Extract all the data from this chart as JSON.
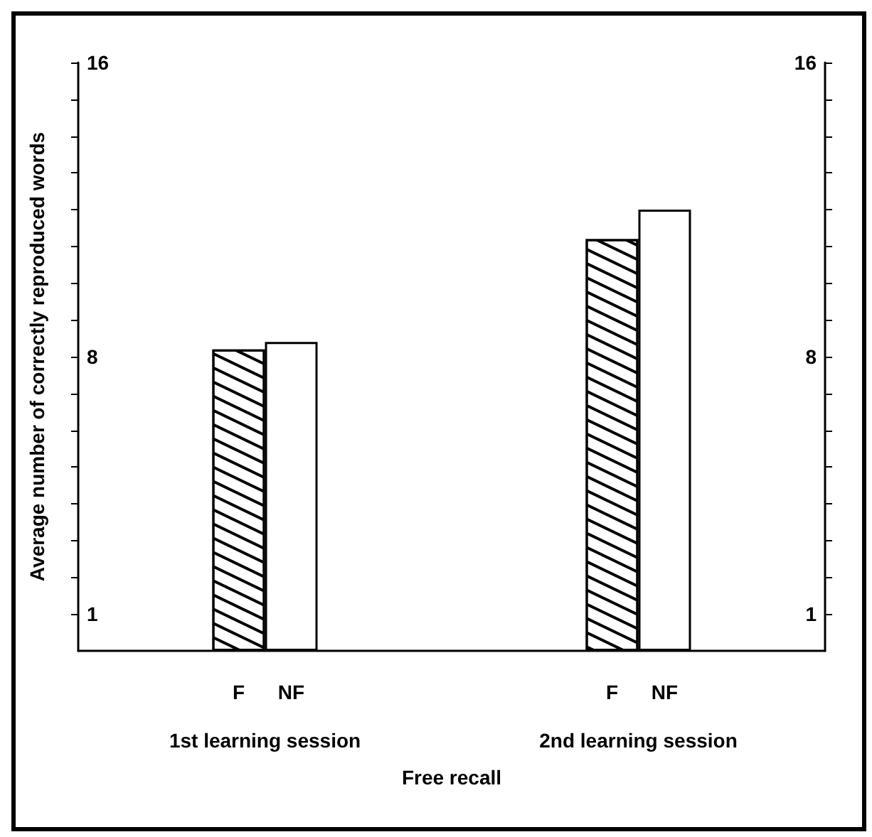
{
  "chart_data": {
    "type": "bar",
    "categories": [
      "1st learning session",
      "2nd learning session"
    ],
    "series": [
      {
        "name": "F",
        "color": "#ffffff",
        "values": [
          8.2,
          11.2
        ]
      },
      {
        "name": "NF",
        "color": "#ffffff",
        "values": [
          8.4,
          12.0
        ]
      }
    ],
    "xlabel": "Free recall",
    "ylabel": "Average number of correctly reproduced words",
    "ylim": [
      0,
      16
    ],
    "yticks": [
      1,
      {
        "value": 2,
        "label": null
      },
      {
        "value": 3,
        "label": null
      },
      {
        "value": 4,
        "label": null
      },
      {
        "value": 5,
        "label": null
      },
      {
        "value": 6,
        "label": null
      },
      {
        "value": 7,
        "label": null
      },
      8,
      {
        "value": 9,
        "label": null
      },
      {
        "value": 10,
        "label": null
      },
      {
        "value": 11,
        "label": null
      },
      {
        "value": 12,
        "label": null
      },
      {
        "value": 13,
        "label": null
      },
      {
        "value": 14,
        "label": null
      },
      {
        "value": 15,
        "label": null
      },
      16
    ],
    "y2lim": [
      0,
      16
    ],
    "y2ticks": [
      1,
      {
        "value": 2,
        "label": null
      },
      {
        "value": 3,
        "label": null
      },
      {
        "value": 4,
        "label": null
      },
      {
        "value": 5,
        "label": null
      },
      {
        "value": 6,
        "label": null
      },
      {
        "value": 7,
        "label": null
      },
      8,
      {
        "value": 9,
        "label": null
      },
      {
        "value": 10,
        "label": null
      },
      {
        "value": 11,
        "label": null
      },
      {
        "value": 12,
        "label": null
      },
      {
        "value": 13,
        "label": null
      },
      {
        "value": 14,
        "label": null
      },
      {
        "value": 15,
        "label": null
      },
      16
    ],
    "grid": false,
    "legend": false
  }
}
